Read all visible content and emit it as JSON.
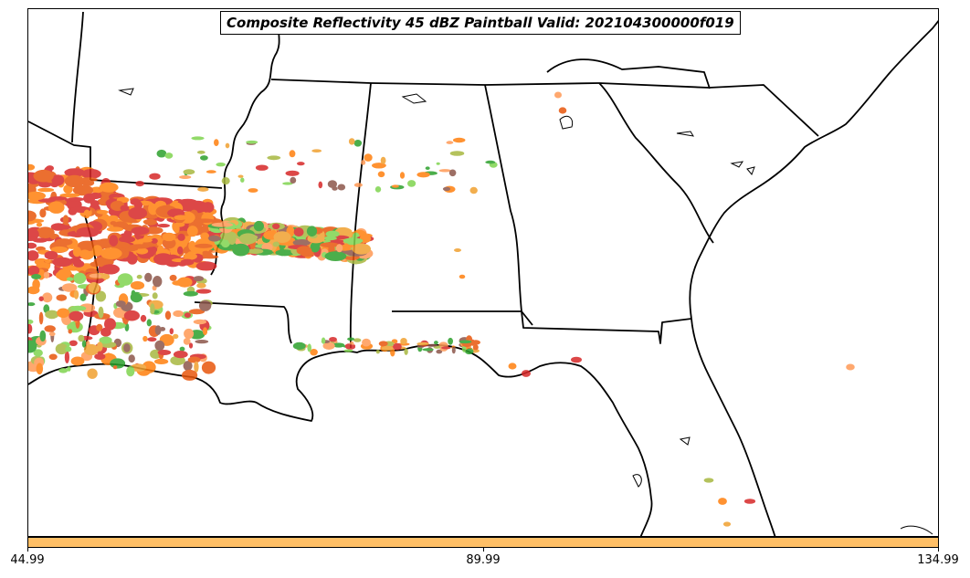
{
  "title": "Composite Reflectivity 45 dBZ Paintball Valid: 202104300000f019",
  "colorbar": {
    "color": "#ffbf66",
    "ticks": [
      "44.99",
      "89.99",
      "134.99"
    ]
  },
  "map": {
    "region": "Southeastern United States",
    "boundary_color": "#000000",
    "paintball_colors": [
      "#ff7f0e",
      "#e8560c",
      "#d62728",
      "#8c564b",
      "#2ca02c",
      "#a8b840",
      "#ff9955",
      "#f0a030",
      "#7fd44f"
    ]
  }
}
